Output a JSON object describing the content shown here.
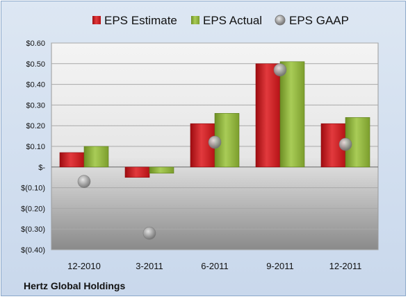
{
  "chart_data": {
    "type": "bar",
    "title": "",
    "xlabel": "",
    "ylabel": "",
    "categories": [
      "12-2010",
      "3-2011",
      "6-2011",
      "9-2011",
      "12-2011"
    ],
    "series": [
      {
        "name": "EPS Estimate",
        "kind": "bar",
        "values": [
          0.07,
          -0.05,
          0.21,
          0.5,
          0.21
        ],
        "color": "#cc1a1f"
      },
      {
        "name": "EPS Actual",
        "kind": "bar",
        "values": [
          0.1,
          -0.03,
          0.26,
          0.51,
          0.24
        ],
        "color": "#8cb23a"
      },
      {
        "name": "EPS GAAP",
        "kind": "scatter",
        "values": [
          -0.07,
          -0.32,
          0.12,
          0.47,
          0.11
        ],
        "color": "#9a9a9a"
      }
    ],
    "ylim": [
      -0.4,
      0.6
    ],
    "yticks": [
      0.6,
      0.5,
      0.4,
      0.3,
      0.2,
      0.1,
      0,
      -0.1,
      -0.2,
      -0.3,
      -0.4
    ],
    "ytick_labels": [
      "$0.60",
      "$0.50",
      "$0.40",
      "$0.30",
      "$0.20",
      "$0.10",
      "$-",
      "$(0.10)",
      "$(0.20)",
      "$(0.30)",
      "$(0.40)"
    ],
    "grid": true,
    "legend_position": "top"
  },
  "footer": {
    "company": "Hertz Global Holdings"
  }
}
